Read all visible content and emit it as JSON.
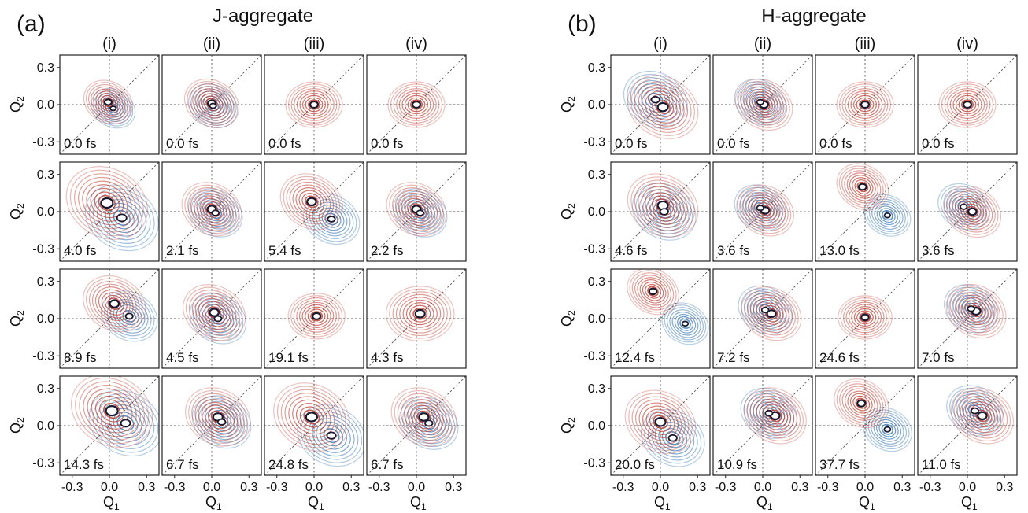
{
  "chart_data": {
    "type": "contour",
    "units": "fs",
    "axes": {
      "xlabel": "Q",
      "xlabel_sub": "1",
      "ylabel": "Q",
      "ylabel_sub": "2",
      "xlim": [
        -0.4,
        0.4
      ],
      "ylim": [
        -0.4,
        0.4
      ],
      "xticks": [
        "-0.3",
        "0.0",
        "0.3"
      ],
      "yticks": [
        "0.3",
        "0.0",
        "-0.3"
      ],
      "guides": [
        "Q1 = 0",
        "Q2 = 0",
        "Q1 = Q2"
      ]
    },
    "colors": {
      "positive": "#c0392b",
      "negative": "#3a7ab8",
      "center": "#1a1a2e"
    },
    "panels": [
      {
        "label": "(a)",
        "title": "J-aggregate",
        "columns": [
          "(i)",
          "(ii)",
          "(iii)",
          "(iv)"
        ],
        "cells": [
          [
            {
              "time": "0.0 fs",
              "red": [
                -0.01,
                0.02
              ],
              "blue": [
                0.03,
                -0.03
              ],
              "spread": 0.9
            },
            {
              "time": "0.0 fs",
              "red": [
                0.0,
                0.01
              ],
              "blue": [
                0.01,
                -0.01
              ],
              "spread": 1.0
            },
            {
              "time": "0.0 fs",
              "red": [
                0.0,
                0.0
              ],
              "blue": null,
              "spread": 1.0
            },
            {
              "time": "0.0 fs",
              "red": [
                0.0,
                0.0
              ],
              "blue": null,
              "spread": 1.0
            }
          ],
          [
            {
              "time": "4.0 fs",
              "red": [
                -0.02,
                0.07
              ],
              "blue": [
                0.1,
                -0.05
              ],
              "spread": 1.5
            },
            {
              "time": "2.1 fs",
              "red": [
                0.0,
                0.02
              ],
              "blue": [
                0.03,
                -0.01
              ],
              "spread": 1.1
            },
            {
              "time": "5.4 fs",
              "red": [
                -0.02,
                0.08
              ],
              "blue": [
                0.14,
                -0.06
              ],
              "spread": 1.15
            },
            {
              "time": "2.2 fs",
              "red": [
                0.0,
                0.02
              ],
              "blue": [
                0.03,
                -0.01
              ],
              "spread": 1.1
            }
          ],
          [
            {
              "time": "8.9 fs",
              "red": [
                0.04,
                0.12
              ],
              "blue": [
                0.16,
                0.02
              ],
              "spread": 1.15
            },
            {
              "time": "4.5 fs",
              "red": [
                0.02,
                0.05
              ],
              "blue": [
                0.05,
                0.0
              ],
              "spread": 1.15
            },
            {
              "time": "19.1 fs",
              "red": [
                0.02,
                0.02
              ],
              "blue": null,
              "spread": 1.0
            },
            {
              "time": "4.3 fs",
              "red": [
                0.03,
                0.04
              ],
              "blue": null,
              "spread": 1.2
            }
          ],
          [
            {
              "time": "14.3 fs",
              "red": [
                0.02,
                0.12
              ],
              "blue": [
                0.13,
                0.02
              ],
              "spread": 1.5
            },
            {
              "time": "6.7 fs",
              "red": [
                0.05,
                0.07
              ],
              "blue": [
                0.08,
                0.03
              ],
              "spread": 1.2
            },
            {
              "time": "24.8 fs",
              "red": [
                -0.02,
                0.07
              ],
              "blue": [
                0.14,
                -0.08
              ],
              "spread": 1.4
            },
            {
              "time": "6.7 fs",
              "red": [
                0.06,
                0.07
              ],
              "blue": [
                0.1,
                0.02
              ],
              "spread": 1.2
            }
          ]
        ]
      },
      {
        "label": "(b)",
        "title": "H-aggregate",
        "columns": [
          "(i)",
          "(ii)",
          "(iii)",
          "(iv)"
        ],
        "cells": [
          [
            {
              "time": "0.0 fs",
              "red": [
                0.02,
                -0.02
              ],
              "blue": [
                -0.04,
                0.04
              ],
              "spread": 1.3
            },
            {
              "time": "0.0 fs",
              "red": [
                0.01,
                0.0
              ],
              "blue": [
                -0.02,
                0.02
              ],
              "spread": 1.05
            },
            {
              "time": "0.0 fs",
              "red": [
                0.0,
                0.0
              ],
              "blue": null,
              "spread": 1.0
            },
            {
              "time": "0.0 fs",
              "red": [
                0.0,
                0.0
              ],
              "blue": null,
              "spread": 1.0
            }
          ],
          [
            {
              "time": "4.6 fs",
              "red": [
                0.02,
                0.05
              ],
              "blue": [
                0.03,
                0.0
              ],
              "spread": 1.3
            },
            {
              "time": "3.6 fs",
              "red": [
                0.02,
                0.01
              ],
              "blue": [
                -0.02,
                0.03
              ],
              "spread": 1.05
            },
            {
              "time": "13.0 fs",
              "red": [
                -0.02,
                0.2
              ],
              "blue": [
                0.18,
                -0.03
              ],
              "spread": 0.95
            },
            {
              "time": "3.6 fs",
              "red": [
                0.04,
                0.0
              ],
              "blue": [
                -0.03,
                0.04
              ],
              "spread": 1.05
            }
          ],
          [
            {
              "time": "12.4 fs",
              "red": [
                -0.06,
                0.22
              ],
              "blue": [
                0.2,
                -0.04
              ],
              "spread": 0.95
            },
            {
              "time": "7.2 fs",
              "red": [
                0.07,
                0.04
              ],
              "blue": [
                0.02,
                0.07
              ],
              "spread": 1.1
            },
            {
              "time": "24.6 fs",
              "red": [
                0.0,
                0.01
              ],
              "blue": null,
              "spread": 0.95
            },
            {
              "time": "7.0 fs",
              "red": [
                0.07,
                0.06
              ],
              "blue": [
                0.03,
                0.08
              ],
              "spread": 1.1
            }
          ],
          [
            {
              "time": "20.0 fs",
              "red": [
                0.0,
                0.03
              ],
              "blue": [
                0.1,
                -0.1
              ],
              "spread": 1.3
            },
            {
              "time": "10.9 fs",
              "red": [
                0.1,
                0.08
              ],
              "blue": [
                0.05,
                0.1
              ],
              "spread": 1.15
            },
            {
              "time": "37.7 fs",
              "red": [
                -0.03,
                0.18
              ],
              "blue": [
                0.18,
                -0.03
              ],
              "spread": 1.0
            },
            {
              "time": "11.0 fs",
              "red": [
                0.12,
                0.08
              ],
              "blue": [
                0.06,
                0.12
              ],
              "spread": 1.15
            }
          ]
        ]
      }
    ]
  }
}
